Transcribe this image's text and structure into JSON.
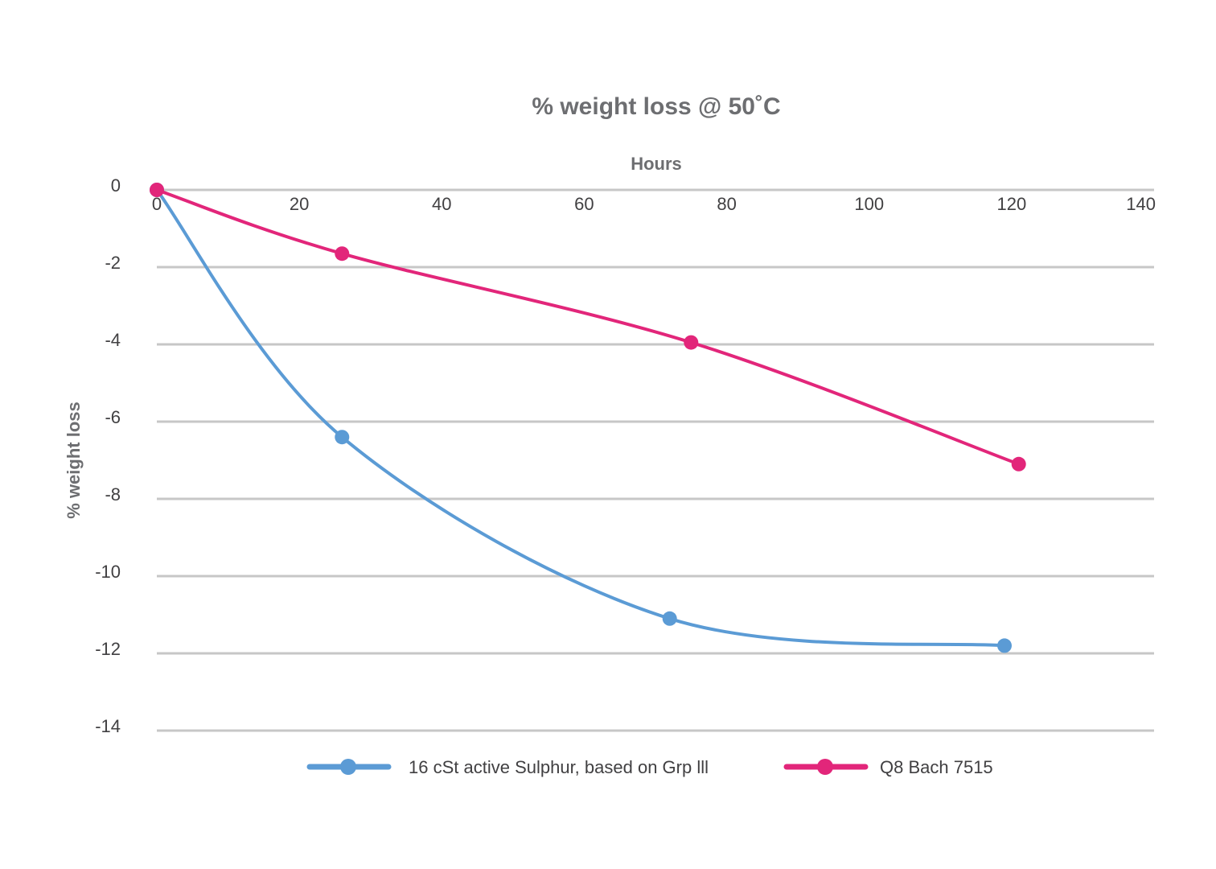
{
  "chart_data": {
    "type": "line",
    "title": "% weight loss @ 50˚C",
    "xlabel": "Hours",
    "ylabel": "% weight loss",
    "xlim": [
      0,
      140
    ],
    "ylim": [
      -14,
      0
    ],
    "x_ticks": [
      "0",
      "20",
      "40",
      "60",
      "80",
      "100",
      "120",
      "140"
    ],
    "y_ticks": [
      "0",
      "-2",
      "-4",
      "-6",
      "-8",
      "-10",
      "-12",
      "-14"
    ],
    "x_axis_position": "top",
    "grid": true,
    "smooth": true,
    "legend_position": "bottom",
    "series": [
      {
        "name": "16 cSt active Sulphur, based on Grp lll",
        "color": "#5b9bd5",
        "points": [
          {
            "x": 0,
            "y": 0
          },
          {
            "x": 26,
            "y": -6.4
          },
          {
            "x": 72,
            "y": -11.1
          },
          {
            "x": 119,
            "y": -11.8
          }
        ]
      },
      {
        "name": "Q8 Bach 7515",
        "color": "#e2267a",
        "points": [
          {
            "x": 0,
            "y": 0
          },
          {
            "x": 26,
            "y": -1.65
          },
          {
            "x": 75,
            "y": -3.95
          },
          {
            "x": 121,
            "y": -7.1
          }
        ]
      }
    ]
  }
}
